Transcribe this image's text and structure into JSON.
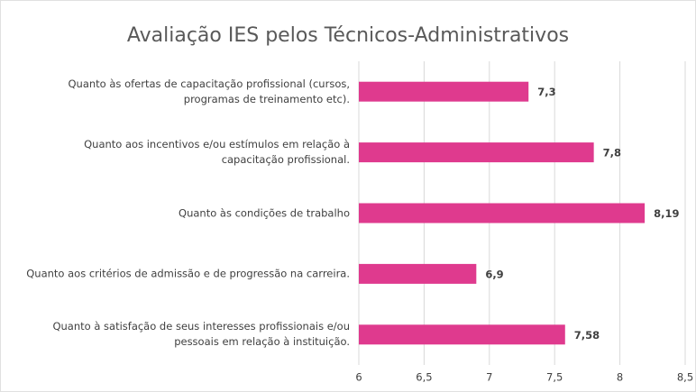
{
  "chart_data": {
    "type": "barh",
    "title": "Avaliação IES pelos Técnicos-Administrativos",
    "categories": [
      "Quanto às ofertas de capacitação profissional (cursos, programas de treinamento etc).",
      "Quanto aos incentivos e/ou estímulos em relação à capacitação profissional.",
      "Quanto às condições de trabalho",
      "Quanto aos critérios de admissão e de progressão na carreira.",
      "Quanto à satisfação de seus interesses profissionais e/ou pessoais em relação à instituição."
    ],
    "values": [
      7.3,
      7.8,
      8.19,
      6.9,
      7.58
    ],
    "value_labels": [
      "7,3",
      "7,8",
      "8,19",
      "6,9",
      "7,58"
    ],
    "color": "#df3a8e",
    "xlim": [
      6,
      8.5
    ],
    "xticks": [
      6,
      {
        "value": 6.5,
        "label": "6,5"
      },
      7,
      {
        "value": 7.5,
        "label": "7,5"
      },
      8,
      {
        "value": 8.5,
        "label": "8,5"
      }
    ],
    "grid": true
  }
}
